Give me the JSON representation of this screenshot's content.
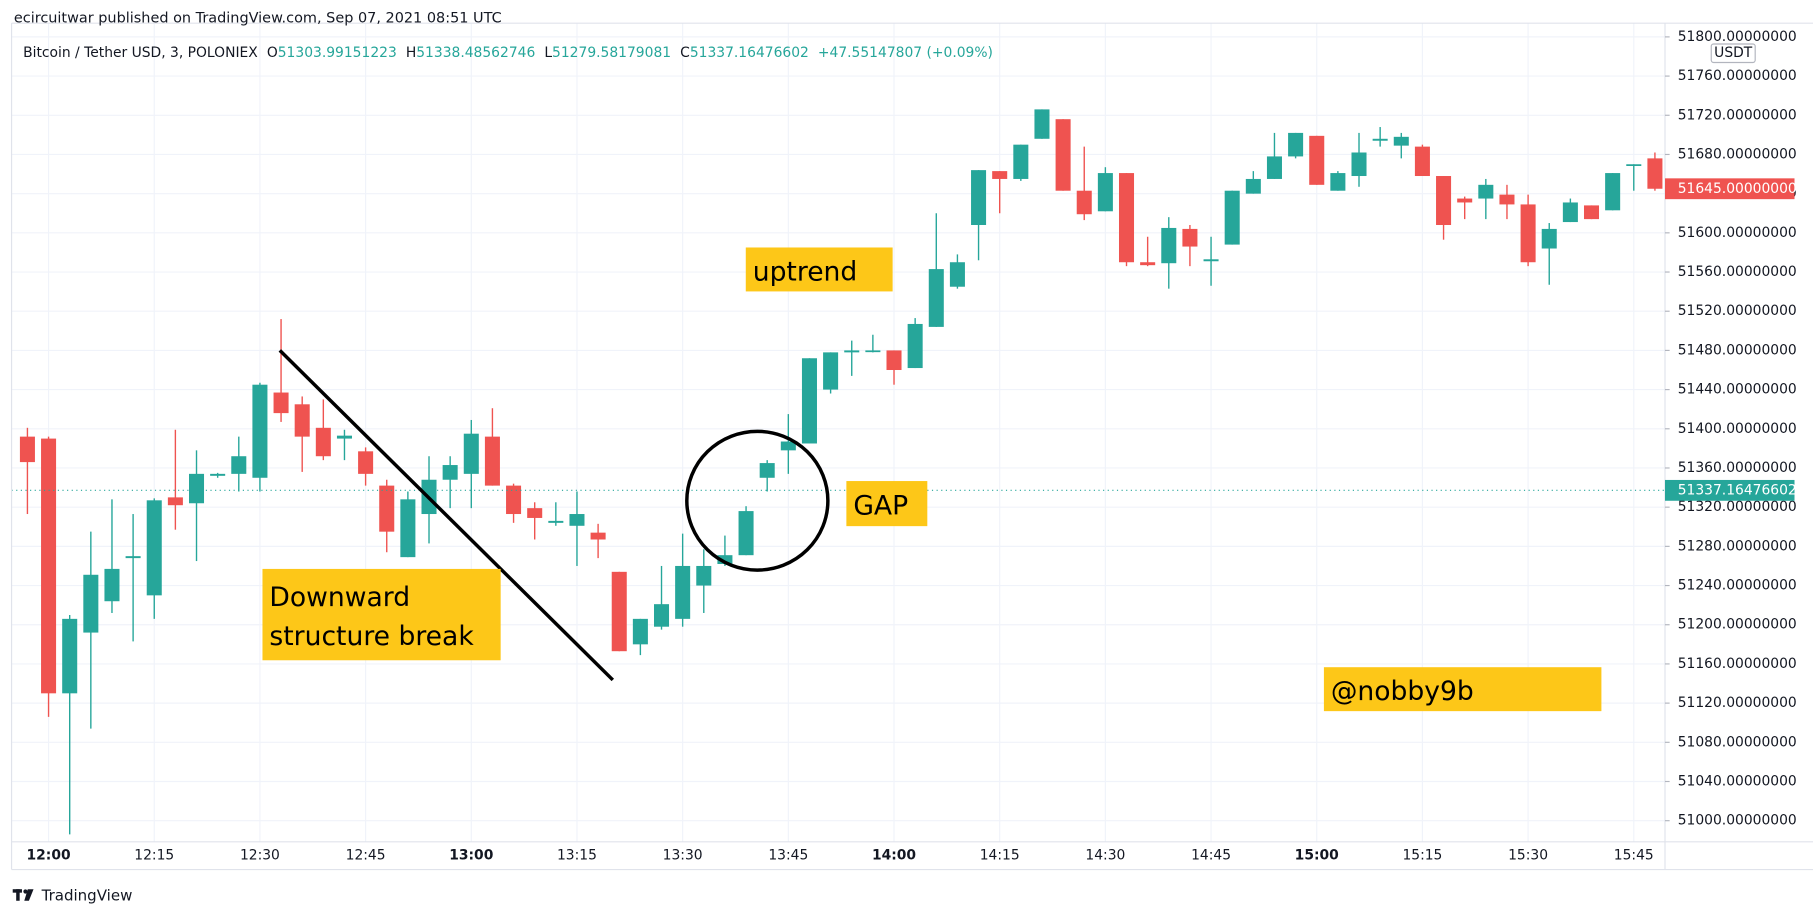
{
  "header": {
    "text": "ecircuitwar published on TradingView.com, Sep 07, 2021 08:51 UTC"
  },
  "legend": {
    "symbol": "Bitcoin / Tether USD, 3, POLONIEX",
    "open_label": "O",
    "open": 51303.99151223,
    "high_label": "H",
    "high": 51338.48562746,
    "low_label": "L",
    "low": 51279.58179081,
    "close_label": "C",
    "close": 51337.16476602,
    "change": "+47.55147807 (+0.09%)"
  },
  "chart_data": {
    "type": "candlestick",
    "currency": "USDT",
    "categories": [
      null,
      "12:00",
      null,
      null,
      null,
      null,
      "12:15",
      null,
      null,
      null,
      null,
      "12:30",
      null,
      null,
      null,
      null,
      "12:45",
      null,
      null,
      null,
      null,
      "13:00",
      null,
      null,
      null,
      null,
      "13:15",
      null,
      null,
      null,
      null,
      "13:30",
      null,
      null,
      null,
      null,
      "13:45",
      null,
      null,
      null,
      null,
      "14:00",
      null,
      null,
      null,
      null,
      "14:15",
      null,
      null,
      null,
      null,
      "14:30",
      null,
      null,
      null,
      null,
      "14:45",
      null,
      null,
      null,
      null,
      "15:00",
      null,
      null,
      null,
      null,
      "15:15",
      null,
      null,
      null,
      null,
      "15:30",
      null,
      null,
      null,
      null,
      "15:45",
      null
    ],
    "open": [
      51392,
      51390,
      51130,
      51192,
      51224,
      51268,
      51230,
      51330,
      51324,
      51352,
      51354,
      51350,
      51437,
      51425,
      51401,
      51390,
      51377,
      51342,
      51269,
      51313,
      51348,
      51354,
      51392,
      51342,
      51319,
      51304,
      51301,
      51294,
      51254,
      51180,
      51198,
      51206,
      51240,
      51262,
      51271,
      51350,
      51378,
      51385,
      51440,
      51478,
      51479,
      51480,
      51462,
      51504,
      51545,
      51608,
      51663,
      51655,
      51696,
      51716,
      51643,
      51622,
      51661,
      51570,
      51569,
      51604,
      51571,
      51588,
      51640,
      51655,
      51678,
      51699,
      51643,
      51658,
      51694,
      51689,
      51688,
      51658,
      51635,
      51635,
      51639,
      51629,
      51584,
      51611,
      51628,
      51623,
      51669,
      51676
    ],
    "high": [
      51401,
      51392,
      51210,
      51295,
      51328,
      51313,
      51329,
      51399,
      51378,
      51355,
      51392,
      51447,
      51512,
      51433,
      51430,
      51399,
      51381,
      51348,
      51336,
      51372,
      51372,
      51409,
      51421,
      51344,
      51325,
      51325,
      51336,
      51303,
      51254,
      51206,
      51260,
      51293,
      51277,
      51291,
      51321,
      51368,
      51415,
      51472,
      51478,
      51490,
      51496,
      51480,
      51513,
      51620,
      51578,
      51664,
      51663,
      51690,
      51726,
      51716,
      51688,
      51667,
      51661,
      51596,
      51616,
      51608,
      51596,
      51643,
      51663,
      51702,
      51702,
      51699,
      51663,
      51702,
      51708,
      51702,
      51690,
      51658,
      51637,
      51655,
      51649,
      51639,
      51610,
      51635,
      51628,
      51661,
      51670,
      51682
    ],
    "low": [
      51313,
      51106,
      50986,
      51094,
      51212,
      51183,
      51206,
      51297,
      51265,
      51350,
      51336,
      51336,
      51407,
      51356,
      51368,
      51368,
      51342,
      51274,
      51269,
      51283,
      51319,
      51319,
      51342,
      51304,
      51287,
      51301,
      51260,
      51268,
      51173,
      51169,
      51195,
      51198,
      51212,
      51260,
      51271,
      51336,
      51354,
      51385,
      51436,
      51454,
      51478,
      51445,
      51462,
      51504,
      51543,
      51572,
      51620,
      51653,
      51696,
      51643,
      51613,
      51622,
      51566,
      51566,
      51543,
      51566,
      51546,
      51588,
      51640,
      51655,
      51676,
      51649,
      51643,
      51647,
      51688,
      51676,
      51658,
      51593,
      51614,
      51614,
      51614,
      51566,
      51547,
      51611,
      51614,
      51623,
      51643,
      51643
    ],
    "close": [
      51366,
      51130,
      51206,
      51251,
      51257,
      51270,
      51327,
      51322,
      51354,
      51354,
      51372,
      51445,
      51416,
      51392,
      51372,
      51393,
      51354,
      51295,
      51328,
      51348,
      51363,
      51395,
      51342,
      51313,
      51309,
      51306,
      51313,
      51287,
      51173,
      51206,
      51221,
      51260,
      51260,
      51271,
      51316,
      51365,
      51387,
      51472,
      51478,
      51480,
      51480,
      51460,
      51507,
      51563,
      51570,
      51664,
      51655,
      51690,
      51726,
      51643,
      51619,
      51661,
      51570,
      51567,
      51605,
      51586,
      51573,
      51643,
      51655,
      51678,
      51702,
      51649,
      51661,
      51682,
      51696,
      51698,
      51658,
      51608,
      51631,
      51649,
      51629,
      51570,
      51604,
      51631,
      51614,
      51661,
      51670,
      51645
    ],
    "up_color": "#26a69a",
    "down_color": "#ef5350",
    "ylim": [
      50982,
      51814
    ],
    "yticks": [
      {
        "value": 51000,
        "label": "51000.00000000"
      },
      {
        "value": 51040,
        "label": "51040.00000000"
      },
      {
        "value": 51080,
        "label": "51080.00000000"
      },
      {
        "value": 51120,
        "label": "51120.00000000"
      },
      {
        "value": 51160,
        "label": "51160.00000000"
      },
      {
        "value": 51200,
        "label": "51200.00000000"
      },
      {
        "value": 51240,
        "label": "51240.00000000"
      },
      {
        "value": 51280,
        "label": "51280.00000000"
      },
      {
        "value": 51320,
        "label": "51320.00000000"
      },
      {
        "value": 51360,
        "label": "51360.00000000"
      },
      {
        "value": 51400,
        "label": "51400.00000000"
      },
      {
        "value": 51440,
        "label": "51440.00000000"
      },
      {
        "value": 51480,
        "label": "51480.00000000"
      },
      {
        "value": 51520,
        "label": "51520.00000000"
      },
      {
        "value": 51560,
        "label": "51560.00000000"
      },
      {
        "value": 51600,
        "label": "51600.00000000"
      },
      {
        "value": 51640,
        "label": "51640.00000000"
      },
      {
        "value": 51680,
        "label": "51680.00000000"
      },
      {
        "value": 51720,
        "label": "51720.00000000"
      },
      {
        "value": 51760,
        "label": "51760.00000000"
      },
      {
        "value": 51800,
        "label": "51800.00000000"
      }
    ],
    "price_labels": [
      {
        "value": 51645,
        "label": "51645.00000000",
        "color": "#ef5350"
      },
      {
        "value": 51337.16476602,
        "color": "#26a69a",
        "line": true
      }
    ],
    "grid": true,
    "annotations": [
      {
        "lines": [
          "uptrend"
        ],
        "color": "#fdc718"
      },
      {
        "lines": [
          "Downward",
          "structure break"
        ],
        "color": "#fdc718"
      },
      {
        "lines": [
          "GAP"
        ],
        "color": "#fdc718"
      },
      {
        "lines": [
          "@nobby9b"
        ],
        "color": "#fdc718"
      }
    ]
  },
  "footer": {
    "brand": "TradingView"
  }
}
